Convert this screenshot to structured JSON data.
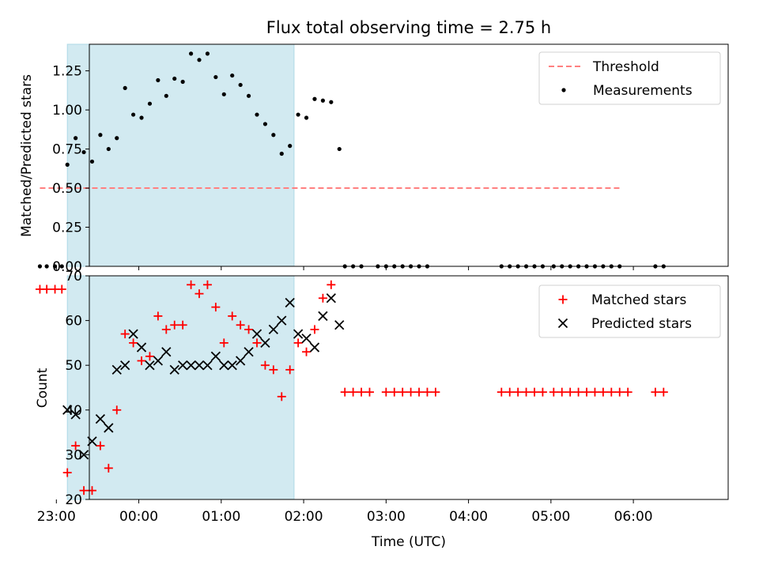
{
  "chart_data": [
    {
      "type": "scatter",
      "title": "Flux total observing time = 2.75 h",
      "xlabel": "",
      "ylabel": "Matched/Predicted stars",
      "ylim": [
        0,
        1.42
      ],
      "xlim_hours": [
        -0.6,
        7.15
      ],
      "yticks": [
        0.0,
        0.25,
        0.5,
        0.75,
        1.0,
        1.25
      ],
      "ytick_labels": [
        "0.00",
        "0.25",
        "0.50",
        "0.75",
        "1.00",
        "1.25"
      ],
      "shaded_span": {
        "from": "23:08",
        "to": "01:53",
        "color": "#add8e6"
      },
      "legend_position": "upper right",
      "threshold": {
        "name": "Threshold",
        "y": 0.5,
        "from": "22:48",
        "to": "05:50",
        "color": "#ff8080"
      },
      "series": [
        {
          "name": "Measurements",
          "color": "#000000",
          "marker": "dot",
          "points": [
            [
              "22:48",
              0
            ],
            [
              "22:53",
              0
            ],
            [
              "22:59",
              0
            ],
            [
              "23:04",
              0
            ],
            [
              "23:08",
              0.65
            ],
            [
              "23:14",
              0.82
            ],
            [
              "23:20",
              0.73
            ],
            [
              "23:26",
              0.67
            ],
            [
              "23:32",
              0.84
            ],
            [
              "23:38",
              0.75
            ],
            [
              "23:44",
              0.82
            ],
            [
              "23:50",
              1.14
            ],
            [
              "23:56",
              0.97
            ],
            [
              "00:02",
              0.95
            ],
            [
              "00:08",
              1.04
            ],
            [
              "00:14",
              1.19
            ],
            [
              "00:20",
              1.09
            ],
            [
              "00:26",
              1.2
            ],
            [
              "00:32",
              1.18
            ],
            [
              "00:38",
              1.36
            ],
            [
              "00:44",
              1.32
            ],
            [
              "00:50",
              1.36
            ],
            [
              "00:56",
              1.21
            ],
            [
              "01:02",
              1.1
            ],
            [
              "01:08",
              1.22
            ],
            [
              "01:14",
              1.16
            ],
            [
              "01:20",
              1.09
            ],
            [
              "01:26",
              0.97
            ],
            [
              "01:32",
              0.91
            ],
            [
              "01:38",
              0.84
            ],
            [
              "01:44",
              0.72
            ],
            [
              "01:50",
              0.77
            ],
            [
              "01:56",
              0.97
            ],
            [
              "02:02",
              0.95
            ],
            [
              "02:08",
              1.07
            ],
            [
              "02:14",
              1.06
            ],
            [
              "02:20",
              1.05
            ],
            [
              "02:26",
              0.75
            ],
            [
              "02:30",
              0
            ],
            [
              "02:36",
              0
            ],
            [
              "02:42",
              0
            ],
            [
              "02:54",
              0
            ],
            [
              "03:00",
              0
            ],
            [
              "03:06",
              0
            ],
            [
              "03:12",
              0
            ],
            [
              "03:18",
              0
            ],
            [
              "03:24",
              0
            ],
            [
              "03:30",
              0
            ],
            [
              "04:24",
              0
            ],
            [
              "04:30",
              0
            ],
            [
              "04:36",
              0
            ],
            [
              "04:42",
              0
            ],
            [
              "04:48",
              0
            ],
            [
              "04:54",
              0
            ],
            [
              "05:02",
              0
            ],
            [
              "05:08",
              0
            ],
            [
              "05:14",
              0
            ],
            [
              "05:20",
              0
            ],
            [
              "05:26",
              0
            ],
            [
              "05:32",
              0
            ],
            [
              "05:38",
              0
            ],
            [
              "05:44",
              0
            ],
            [
              "05:50",
              0
            ],
            [
              "06:16",
              0
            ],
            [
              "06:22",
              0
            ]
          ]
        }
      ]
    },
    {
      "type": "scatter",
      "title": "",
      "xlabel": "Time (UTC)",
      "ylabel": "Count",
      "ylim": [
        20,
        70
      ],
      "xlim_hours": [
        -0.6,
        7.15
      ],
      "yticks": [
        20,
        30,
        40,
        50,
        60,
        70
      ],
      "xticks": [
        "23:00",
        "00:00",
        "01:00",
        "02:00",
        "03:00",
        "04:00",
        "05:00",
        "06:00"
      ],
      "shaded_span": {
        "from": "23:08",
        "to": "01:53",
        "color": "#add8e6"
      },
      "legend_position": "upper right",
      "series": [
        {
          "name": "Matched stars",
          "color": "#ff0000",
          "marker": "plus",
          "points": [
            [
              "22:48",
              67
            ],
            [
              "22:53",
              67
            ],
            [
              "22:59",
              67
            ],
            [
              "23:04",
              67
            ],
            [
              "23:08",
              26
            ],
            [
              "23:14",
              32
            ],
            [
              "23:20",
              22
            ],
            [
              "23:26",
              22
            ],
            [
              "23:32",
              32
            ],
            [
              "23:38",
              27
            ],
            [
              "23:44",
              40
            ],
            [
              "23:50",
              57
            ],
            [
              "23:56",
              55
            ],
            [
              "00:02",
              51
            ],
            [
              "00:08",
              52
            ],
            [
              "00:14",
              61
            ],
            [
              "00:20",
              58
            ],
            [
              "00:26",
              59
            ],
            [
              "00:32",
              59
            ],
            [
              "00:38",
              68
            ],
            [
              "00:44",
              66
            ],
            [
              "00:50",
              68
            ],
            [
              "00:56",
              63
            ],
            [
              "01:02",
              55
            ],
            [
              "01:08",
              61
            ],
            [
              "01:14",
              59
            ],
            [
              "01:20",
              58
            ],
            [
              "01:26",
              55
            ],
            [
              "01:32",
              50
            ],
            [
              "01:38",
              49
            ],
            [
              "01:44",
              43
            ],
            [
              "01:50",
              49
            ],
            [
              "01:56",
              55
            ],
            [
              "02:02",
              53
            ],
            [
              "02:08",
              58
            ],
            [
              "02:14",
              65
            ],
            [
              "02:20",
              68
            ],
            [
              "02:30",
              44
            ],
            [
              "02:36",
              44
            ],
            [
              "02:42",
              44
            ],
            [
              "02:48",
              44
            ],
            [
              "03:00",
              44
            ],
            [
              "03:06",
              44
            ],
            [
              "03:12",
              44
            ],
            [
              "03:18",
              44
            ],
            [
              "03:24",
              44
            ],
            [
              "03:30",
              44
            ],
            [
              "03:36",
              44
            ],
            [
              "04:24",
              44
            ],
            [
              "04:30",
              44
            ],
            [
              "04:36",
              44
            ],
            [
              "04:42",
              44
            ],
            [
              "04:48",
              44
            ],
            [
              "04:54",
              44
            ],
            [
              "05:02",
              44
            ],
            [
              "05:08",
              44
            ],
            [
              "05:14",
              44
            ],
            [
              "05:20",
              44
            ],
            [
              "05:26",
              44
            ],
            [
              "05:32",
              44
            ],
            [
              "05:38",
              44
            ],
            [
              "05:44",
              44
            ],
            [
              "05:50",
              44
            ],
            [
              "05:56",
              44
            ],
            [
              "06:16",
              44
            ],
            [
              "06:22",
              44
            ]
          ]
        },
        {
          "name": "Predicted stars",
          "color": "#000000",
          "marker": "x",
          "points": [
            [
              "23:08",
              40
            ],
            [
              "23:14",
              39
            ],
            [
              "23:20",
              30
            ],
            [
              "23:26",
              33
            ],
            [
              "23:32",
              38
            ],
            [
              "23:38",
              36
            ],
            [
              "23:44",
              49
            ],
            [
              "23:50",
              50
            ],
            [
              "23:56",
              57
            ],
            [
              "00:02",
              54
            ],
            [
              "00:08",
              50
            ],
            [
              "00:14",
              51
            ],
            [
              "00:20",
              53
            ],
            [
              "00:26",
              49
            ],
            [
              "00:32",
              50
            ],
            [
              "00:38",
              50
            ],
            [
              "00:44",
              50
            ],
            [
              "00:50",
              50
            ],
            [
              "00:56",
              52
            ],
            [
              "01:02",
              50
            ],
            [
              "01:08",
              50
            ],
            [
              "01:14",
              51
            ],
            [
              "01:20",
              53
            ],
            [
              "01:26",
              57
            ],
            [
              "01:32",
              55
            ],
            [
              "01:38",
              58
            ],
            [
              "01:44",
              60
            ],
            [
              "01:50",
              64
            ],
            [
              "01:56",
              57
            ],
            [
              "02:02",
              56
            ],
            [
              "02:08",
              54
            ],
            [
              "02:14",
              61
            ],
            [
              "02:20",
              65
            ],
            [
              "02:26",
              59
            ]
          ]
        }
      ]
    }
  ]
}
